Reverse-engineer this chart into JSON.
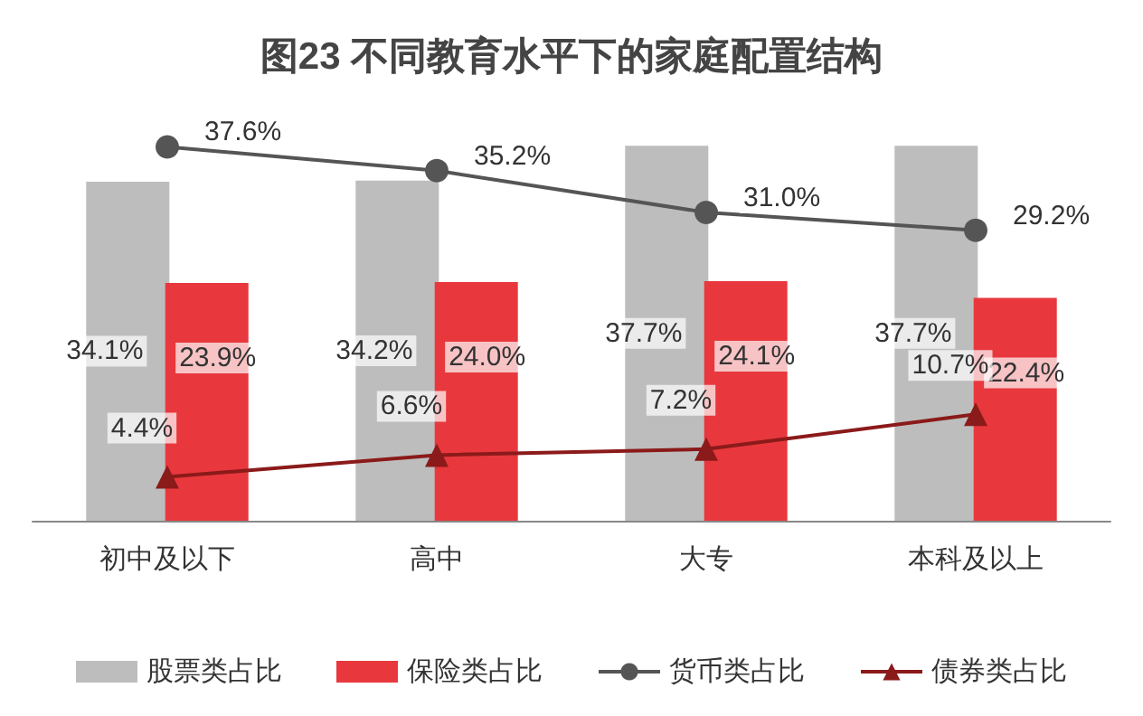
{
  "chart_data": {
    "type": "bar",
    "title": "图23 不同教育水平下的家庭配置结构",
    "categories": [
      "初中及以下",
      "高中",
      "大专",
      "本科及以上"
    ],
    "series": [
      {
        "name": "股票类占比",
        "type": "bar",
        "color": "#bdbdbd",
        "values": [
          34.1,
          34.2,
          37.7,
          37.7
        ],
        "value_labels": [
          "34.1%",
          "34.2%",
          "37.7%",
          "37.7%"
        ]
      },
      {
        "name": "保险类占比",
        "type": "bar",
        "color": "#e8383d",
        "values": [
          23.9,
          24.0,
          24.1,
          22.4
        ],
        "value_labels": [
          "23.9%",
          "24.0%",
          "24.1%",
          "22.4%"
        ]
      },
      {
        "name": "货币类占比",
        "type": "line",
        "color": "#555555",
        "marker": "circle",
        "values": [
          37.6,
          35.2,
          31.0,
          29.2
        ],
        "value_labels": [
          "37.6%",
          "35.2%",
          "31.0%",
          "29.2%"
        ]
      },
      {
        "name": "债券类占比",
        "type": "line",
        "color": "#8b1a1a",
        "marker": "triangle",
        "values": [
          4.4,
          6.6,
          7.2,
          10.7
        ],
        "value_labels": [
          "4.4%",
          "6.6%",
          "7.2%",
          "10.7%"
        ]
      }
    ],
    "legend": "bottom",
    "grid": false
  }
}
